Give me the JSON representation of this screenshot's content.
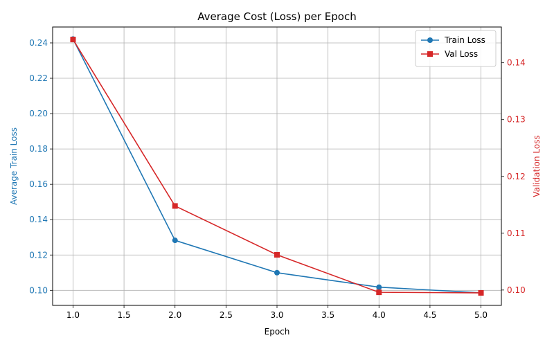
{
  "chart_data": {
    "type": "line",
    "title": "Average Cost (Loss) per Epoch",
    "xlabel": "Epoch",
    "ylabel_left": "Average Train Loss",
    "ylabel_right": "Validation Loss",
    "xlim": [
      0.8,
      5.2
    ],
    "ylim_left": [
      0.0915,
      0.249
    ],
    "ylim_right": [
      0.0973,
      0.1463
    ],
    "x_ticks": [
      1.0,
      1.5,
      2.0,
      2.5,
      3.0,
      3.5,
      4.0,
      4.5,
      5.0
    ],
    "x_tick_labels": [
      "1.0",
      "1.5",
      "2.0",
      "2.5",
      "3.0",
      "3.5",
      "4.0",
      "4.5",
      "5.0"
    ],
    "y_left_ticks": [
      0.1,
      0.12,
      0.14,
      0.16,
      0.18,
      0.2,
      0.22,
      0.24
    ],
    "y_left_tick_labels": [
      "0.10",
      "0.12",
      "0.14",
      "0.16",
      "0.18",
      "0.20",
      "0.22",
      "0.24"
    ],
    "y_right_ticks": [
      0.1,
      0.11,
      0.12,
      0.13,
      0.14
    ],
    "y_right_tick_labels": [
      "0.10",
      "0.11",
      "0.12",
      "0.13",
      "0.14"
    ],
    "grid": true,
    "legend_position": "top-right",
    "series": [
      {
        "name": "Train Loss",
        "axis": "left",
        "color": "#1f77b4",
        "marker": "circle",
        "x": [
          1,
          2,
          3,
          4,
          5
        ],
        "values": [
          0.2422,
          0.1283,
          0.11,
          0.1018,
          0.0986
        ]
      },
      {
        "name": "Val Loss",
        "axis": "right",
        "color": "#d62728",
        "marker": "square",
        "x": [
          1,
          2,
          3,
          4,
          5
        ],
        "values": [
          0.1441,
          0.1148,
          0.1062,
          0.0996,
          0.0995
        ]
      }
    ]
  }
}
